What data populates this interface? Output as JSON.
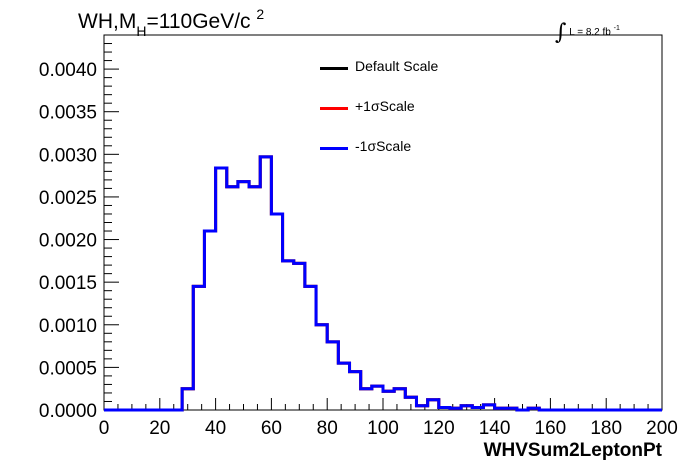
{
  "title": {
    "main": "WH,M",
    "sub": "H",
    "rest": "=110GeV/c",
    "sup": "2"
  },
  "lumi": {
    "integral": "∫",
    "text": "L = 8.2 fb",
    "sup": "-1"
  },
  "legend": [
    {
      "label": "Default Scale",
      "color": "#000000"
    },
    {
      "label": "+1σScale",
      "color": "#ff0000"
    },
    {
      "label": "-1σScale",
      "color": "#0000ff"
    }
  ],
  "chart_data": {
    "type": "line",
    "style": "step-histogram",
    "xlabel": "WHVSum2LeptonPt",
    "ylabel": "",
    "xlim": [
      0,
      200
    ],
    "ylim": [
      0,
      0.0044
    ],
    "xticks": [
      "0",
      "20",
      "40",
      "60",
      "80",
      "100",
      "120",
      "140",
      "160",
      "180",
      "200"
    ],
    "yticks": [
      "0.0000",
      "0.0005",
      "0.0010",
      "0.0015",
      "0.0020",
      "0.0025",
      "0.0030",
      "0.0035",
      "0.0040"
    ],
    "bin_edges": [
      0,
      4,
      8,
      12,
      16,
      20,
      24,
      28,
      32,
      36,
      40,
      44,
      48,
      52,
      56,
      60,
      64,
      68,
      72,
      76,
      80,
      84,
      88,
      92,
      96,
      100,
      104,
      108,
      112,
      116,
      120,
      124,
      128,
      132,
      136,
      140,
      144,
      148,
      152,
      156,
      160,
      164,
      168,
      172,
      176,
      180,
      184,
      188,
      192,
      196,
      200
    ],
    "series": [
      {
        "name": "Default Scale",
        "color": "#000000",
        "values": [
          0,
          0,
          0,
          0,
          0,
          0,
          0,
          0.00025,
          0.00145,
          0.0021,
          0.00284,
          0.00262,
          0.00268,
          0.00262,
          0.00297,
          0.0023,
          0.00175,
          0.00172,
          0.00145,
          0.001,
          0.0008,
          0.00055,
          0.00045,
          0.00025,
          0.00028,
          0.00022,
          0.00025,
          0.00015,
          5e-05,
          0.00012,
          3e-05,
          2e-05,
          5e-05,
          3e-05,
          6e-05,
          2e-05,
          2e-05,
          0,
          2e-05,
          0,
          0,
          0,
          0,
          0,
          0,
          0,
          0,
          0,
          0,
          0
        ]
      },
      {
        "name": "+1σScale",
        "color": "#ff0000",
        "values": [
          0,
          0,
          0,
          0,
          0,
          0,
          0,
          0.00025,
          0.00145,
          0.0021,
          0.00284,
          0.00262,
          0.00268,
          0.00262,
          0.00297,
          0.0023,
          0.00175,
          0.00172,
          0.00145,
          0.001,
          0.0008,
          0.00055,
          0.00045,
          0.00025,
          0.00028,
          0.00022,
          0.00025,
          0.00015,
          5e-05,
          0.00012,
          3e-05,
          2e-05,
          5e-05,
          3e-05,
          6e-05,
          2e-05,
          2e-05,
          0,
          2e-05,
          0,
          0,
          0,
          0,
          0,
          0,
          0,
          0,
          0,
          0,
          0
        ]
      },
      {
        "name": "-1σScale",
        "color": "#0000ff",
        "values": [
          0,
          0,
          0,
          0,
          0,
          0,
          0,
          0.00025,
          0.00145,
          0.0021,
          0.00284,
          0.00262,
          0.00268,
          0.00262,
          0.00297,
          0.0023,
          0.00175,
          0.00172,
          0.00145,
          0.001,
          0.0008,
          0.00055,
          0.00045,
          0.00025,
          0.00028,
          0.00022,
          0.00025,
          0.00015,
          5e-05,
          0.00012,
          3e-05,
          2e-05,
          5e-05,
          3e-05,
          6e-05,
          2e-05,
          2e-05,
          0,
          2e-05,
          0,
          0,
          0,
          0,
          0,
          0,
          0,
          0,
          0,
          0,
          0
        ]
      }
    ]
  }
}
